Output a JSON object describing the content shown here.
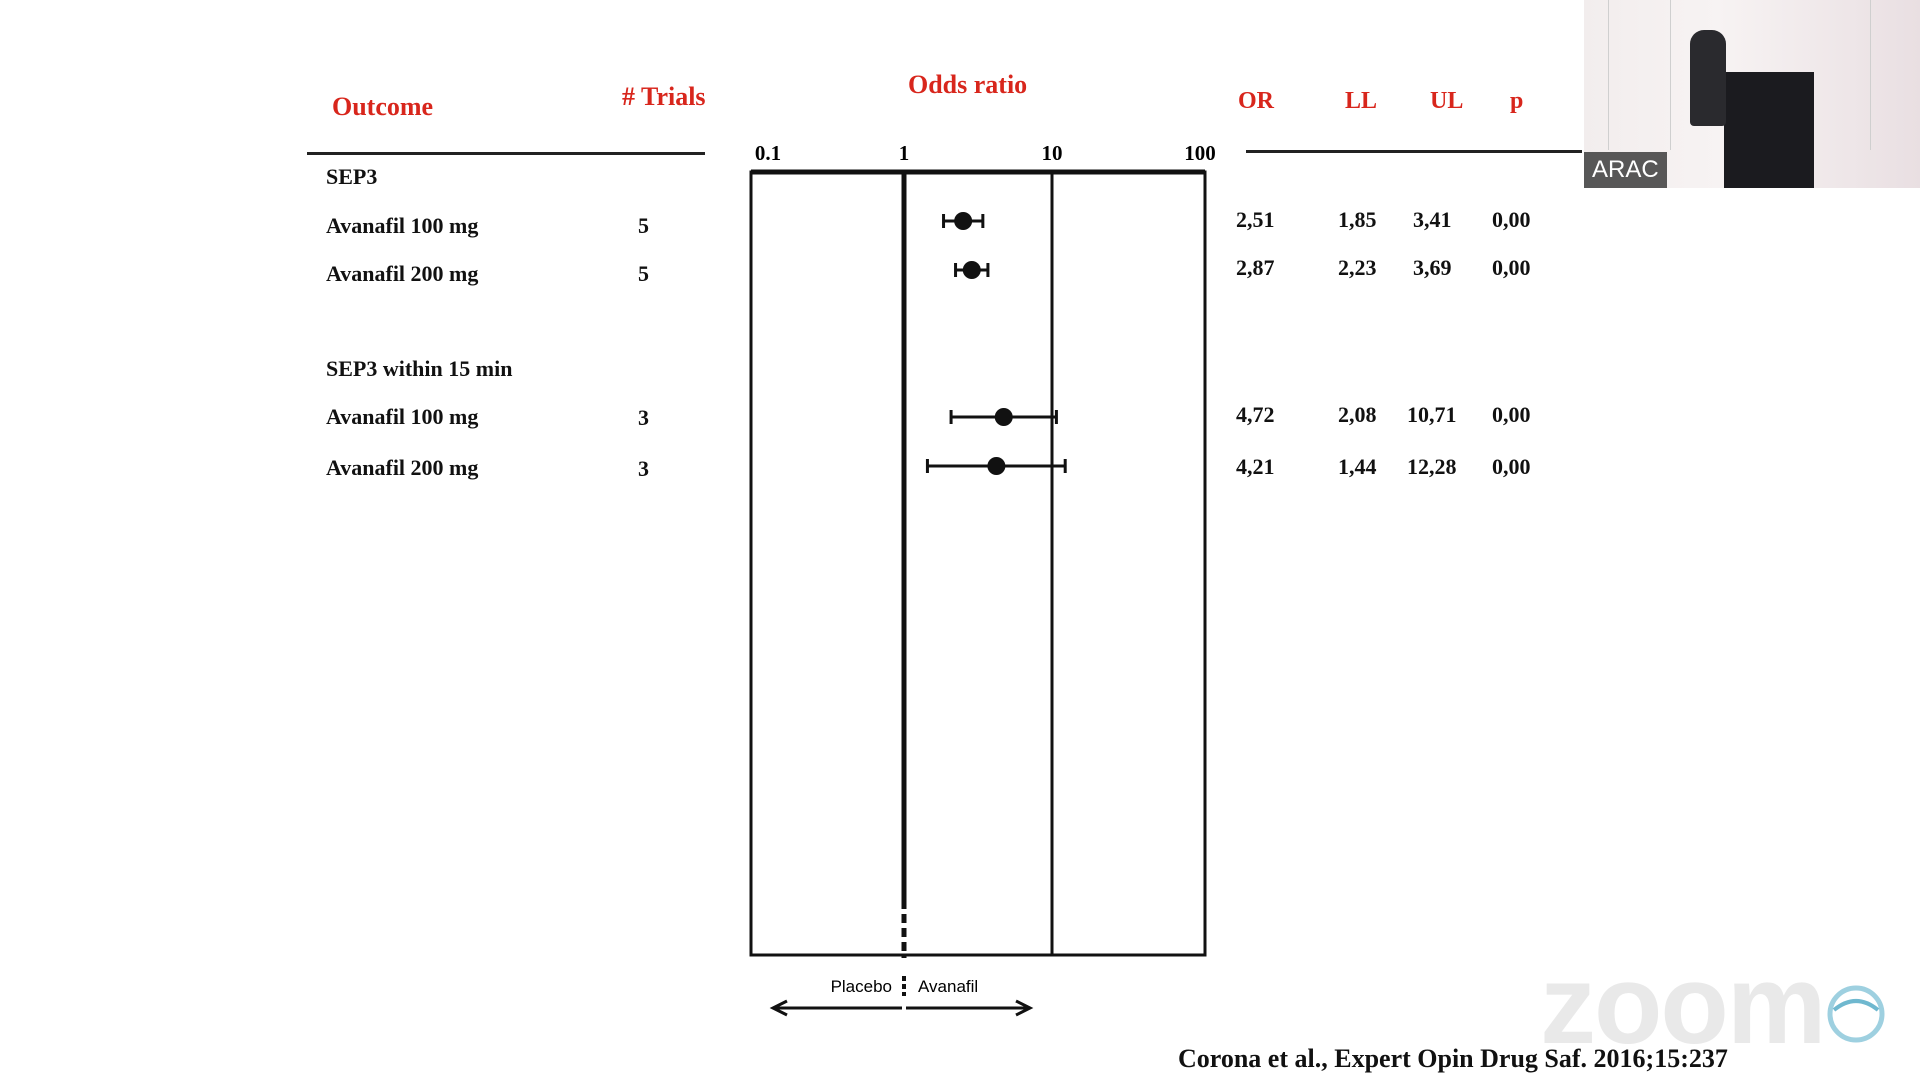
{
  "headers": {
    "outcome": "Outcome",
    "trials": "# Trials",
    "odds_ratio": "Odds ratio",
    "or": "OR",
    "ll": "LL",
    "ul": "UL",
    "p": "p"
  },
  "groups": [
    {
      "label": "SEP3"
    },
    {
      "label": "SEP3 within 15 min"
    }
  ],
  "rows": [
    {
      "label": "Avanafil 100 mg",
      "trials": "5",
      "or": "2,51",
      "ll": "1,85",
      "ul": "3,41",
      "p": "0,00"
    },
    {
      "label": "Avanafil 200 mg",
      "trials": "5",
      "or": "2,87",
      "ll": "2,23",
      "ul": "3,69",
      "p": "0,00"
    },
    {
      "label": "Avanafil 100 mg",
      "trials": "3",
      "or": "4,72",
      "ll": "2,08",
      "ul": "10,71",
      "p": "0,00"
    },
    {
      "label": "Avanafil 200 mg",
      "trials": "3",
      "or": "4,21",
      "ll": "1,44",
      "ul": "12,28",
      "p": "0,00"
    }
  ],
  "chart_data": {
    "type": "scatter",
    "title": "Odds ratio",
    "x_scale": "log",
    "xlim": [
      0.1,
      100
    ],
    "x_ticks": [
      "0.1",
      "1",
      "10",
      "100"
    ],
    "reference_line": 1,
    "direction_labels": {
      "left": "Placebo",
      "right": "Avanafil"
    },
    "points": [
      {
        "label": "Avanafil 100 mg",
        "or": 2.51,
        "ll": 1.85,
        "ul": 3.41
      },
      {
        "label": "Avanafil 200 mg",
        "or": 2.87,
        "ll": 2.23,
        "ul": 3.69
      },
      {
        "label": "Avanafil 100 mg",
        "or": 4.72,
        "ll": 2.08,
        "ul": 10.71
      },
      {
        "label": "Avanafil 200 mg",
        "or": 4.21,
        "ll": 1.44,
        "ul": 12.28
      }
    ]
  },
  "citation": "Corona et al., Expert Opin Drug Saf. 2016;15:237",
  "video": {
    "label": "ARAC"
  },
  "watermark": {
    "text": "zoom"
  }
}
